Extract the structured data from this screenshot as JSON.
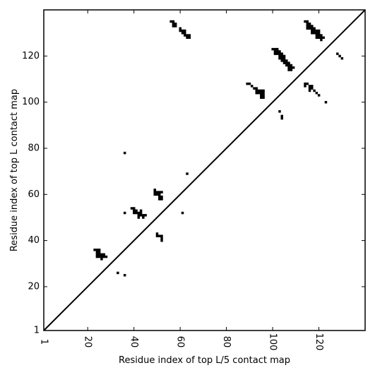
{
  "chart_data": {
    "type": "scatter",
    "xlabel": "Residue index of top L/5 contact map",
    "ylabel": "Residue index of top L contact map",
    "xlim": [
      1,
      140
    ],
    "ylim": [
      1,
      140
    ],
    "x_ticks": [
      1,
      20,
      40,
      60,
      80,
      100,
      120
    ],
    "y_ticks": [
      1,
      20,
      40,
      60,
      80,
      100,
      120
    ],
    "diagonal": true,
    "grid": false,
    "marker_color": "#000000",
    "upper_triangle_points": [
      [
        56,
        135
      ],
      [
        57,
        135
      ],
      [
        57,
        134
      ],
      [
        58,
        134
      ],
      [
        57,
        133
      ],
      [
        58,
        133
      ],
      [
        60,
        132
      ],
      [
        60,
        131
      ],
      [
        61,
        131
      ],
      [
        62,
        131
      ],
      [
        61,
        130
      ],
      [
        62,
        130
      ],
      [
        62,
        129
      ],
      [
        63,
        129
      ],
      [
        64,
        129
      ],
      [
        63,
        128
      ],
      [
        64,
        128
      ],
      [
        100,
        123
      ],
      [
        101,
        123
      ],
      [
        102,
        123
      ],
      [
        101,
        122
      ],
      [
        102,
        122
      ],
      [
        103,
        122
      ],
      [
        101,
        121
      ],
      [
        102,
        121
      ],
      [
        103,
        121
      ],
      [
        104,
        121
      ],
      [
        103,
        120
      ],
      [
        104,
        120
      ],
      [
        105,
        120
      ],
      [
        103,
        119
      ],
      [
        104,
        119
      ],
      [
        105,
        119
      ],
      [
        104,
        118
      ],
      [
        105,
        118
      ],
      [
        106,
        118
      ],
      [
        105,
        117
      ],
      [
        106,
        117
      ],
      [
        107,
        117
      ],
      [
        106,
        116
      ],
      [
        107,
        116
      ],
      [
        108,
        116
      ],
      [
        107,
        115
      ],
      [
        108,
        115
      ],
      [
        109,
        115
      ],
      [
        107,
        114
      ],
      [
        108,
        114
      ],
      [
        89,
        108
      ],
      [
        90,
        108
      ],
      [
        91,
        107
      ],
      [
        92,
        106
      ],
      [
        93,
        106
      ],
      [
        93,
        105
      ],
      [
        94,
        105
      ],
      [
        95,
        105
      ],
      [
        96,
        105
      ],
      [
        93,
        104
      ],
      [
        94,
        104
      ],
      [
        95,
        104
      ],
      [
        96,
        104
      ],
      [
        95,
        103
      ],
      [
        96,
        103
      ],
      [
        95,
        102
      ],
      [
        96,
        102
      ],
      [
        103,
        96
      ],
      [
        104,
        94
      ],
      [
        104,
        93
      ],
      [
        114,
        135
      ],
      [
        115,
        135
      ],
      [
        115,
        134
      ],
      [
        116,
        134
      ],
      [
        115,
        133
      ],
      [
        116,
        133
      ],
      [
        117,
        133
      ],
      [
        115,
        132
      ],
      [
        116,
        132
      ],
      [
        117,
        132
      ],
      [
        118,
        132
      ],
      [
        117,
        131
      ],
      [
        118,
        131
      ],
      [
        119,
        131
      ],
      [
        120,
        131
      ],
      [
        117,
        130
      ],
      [
        118,
        130
      ],
      [
        119,
        130
      ],
      [
        120,
        130
      ],
      [
        119,
        129
      ],
      [
        120,
        129
      ],
      [
        121,
        129
      ],
      [
        119,
        128
      ],
      [
        120,
        128
      ],
      [
        121,
        128
      ],
      [
        122,
        128
      ],
      [
        121,
        127
      ],
      [
        114,
        108
      ],
      [
        115,
        108
      ],
      [
        114,
        107
      ],
      [
        116,
        107
      ],
      [
        117,
        107
      ],
      [
        116,
        106
      ],
      [
        117,
        106
      ],
      [
        116,
        105
      ],
      [
        118,
        105
      ],
      [
        119,
        104
      ],
      [
        120,
        103
      ],
      [
        123,
        100
      ],
      [
        128,
        121
      ],
      [
        129,
        120
      ],
      [
        130,
        119
      ]
    ],
    "lower_triangle_points": [
      [
        23,
        36
      ],
      [
        24,
        36
      ],
      [
        25,
        36
      ],
      [
        24,
        35
      ],
      [
        25,
        35
      ],
      [
        24,
        34
      ],
      [
        25,
        34
      ],
      [
        26,
        34
      ],
      [
        27,
        34
      ],
      [
        24,
        33
      ],
      [
        25,
        33
      ],
      [
        26,
        33
      ],
      [
        27,
        33
      ],
      [
        28,
        33
      ],
      [
        26,
        32
      ],
      [
        33,
        26
      ],
      [
        36,
        25
      ],
      [
        36,
        52
      ],
      [
        36,
        78
      ],
      [
        39,
        54
      ],
      [
        40,
        54
      ],
      [
        40,
        53
      ],
      [
        41,
        53
      ],
      [
        43,
        53
      ],
      [
        40,
        52
      ],
      [
        41,
        52
      ],
      [
        42,
        52
      ],
      [
        43,
        52
      ],
      [
        42,
        51
      ],
      [
        43,
        51
      ],
      [
        44,
        51
      ],
      [
        45,
        51
      ],
      [
        42,
        50
      ],
      [
        44,
        50
      ],
      [
        49,
        62
      ],
      [
        49,
        61
      ],
      [
        50,
        61
      ],
      [
        51,
        61
      ],
      [
        52,
        61
      ],
      [
        49,
        60
      ],
      [
        50,
        60
      ],
      [
        51,
        60
      ],
      [
        51,
        59
      ],
      [
        52,
        59
      ],
      [
        51,
        58
      ],
      [
        52,
        58
      ],
      [
        50,
        43
      ],
      [
        50,
        42
      ],
      [
        51,
        42
      ],
      [
        52,
        42
      ],
      [
        52,
        41
      ],
      [
        52,
        40
      ],
      [
        61,
        52
      ],
      [
        63,
        69
      ]
    ]
  }
}
